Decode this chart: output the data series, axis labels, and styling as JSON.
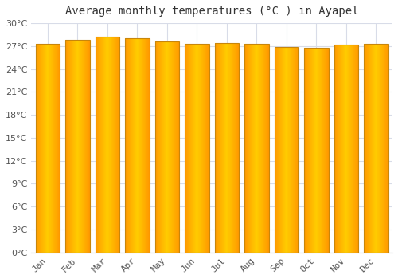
{
  "title": "Average monthly temperatures (°C ) in Ayapel",
  "months": [
    "Jan",
    "Feb",
    "Mar",
    "Apr",
    "May",
    "Jun",
    "Jul",
    "Aug",
    "Sep",
    "Oct",
    "Nov",
    "Dec"
  ],
  "values": [
    27.3,
    27.8,
    28.2,
    28.0,
    27.6,
    27.3,
    27.4,
    27.3,
    26.9,
    26.8,
    27.2,
    27.3
  ],
  "ylim": [
    0,
    30
  ],
  "ytick_step": 3,
  "background_color": "#FFFFFF",
  "plot_bg_color": "#FFFFFF",
  "grid_color": "#D8DCE8",
  "bar_color_center": "#FFCC00",
  "bar_color_edge": "#F5A623",
  "bar_edge_color": "#C8860A",
  "title_fontsize": 10,
  "tick_fontsize": 8
}
